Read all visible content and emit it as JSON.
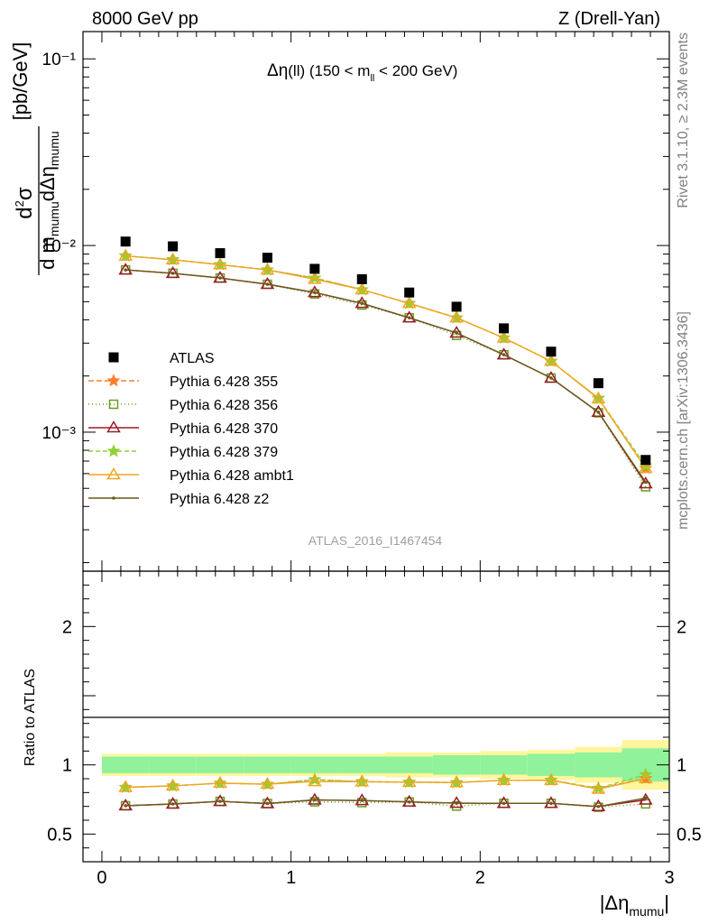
{
  "header": {
    "left": "8000 GeV pp",
    "right": "Z (Drell-Yan)"
  },
  "side_labels": {
    "rivet": "Rivet 3.1.10, ≥ 2.3M events",
    "mcplots": "mcplots.cern.ch [arXiv:1306.3436]"
  },
  "chart_data": {
    "type": "line",
    "title": "Δη(ll) (150 < m_ll < 200 GeV)",
    "analysis_tag": "ATLAS_2016_I1467454",
    "xlabel": "|Δη_mumu|",
    "ylabel": "d²σ / d m_mumu dΔη_mumu [pb/GeV]",
    "ratio_ylabel": "Ratio to ATLAS",
    "xlim": [
      -0.1,
      3.0
    ],
    "ylim": [
      0.00018,
      0.14
    ],
    "yscale": "log",
    "ratio_ylim": [
      0.3,
      2.4
    ],
    "x_ticks": [
      "0",
      "1",
      "2",
      "3"
    ],
    "y_ticks": [
      "10⁻³",
      "10⁻²",
      "10⁻¹"
    ],
    "ratio_ticks": [
      "0.5",
      "1",
      "2"
    ],
    "legend_position": "center-left",
    "x": [
      0.125,
      0.375,
      0.625,
      0.875,
      1.125,
      1.375,
      1.625,
      1.875,
      2.125,
      2.375,
      2.625,
      2.875
    ],
    "data": {
      "name": "ATLAS",
      "values": [
        0.0105,
        0.0099,
        0.0091,
        0.0086,
        0.0075,
        0.0066,
        0.0056,
        0.0047,
        0.0036,
        0.0027,
        0.00183,
        0.00071
      ]
    },
    "band_inner": [
      0.06,
      0.06,
      0.06,
      0.06,
      0.06,
      0.06,
      0.06,
      0.07,
      0.07,
      0.08,
      0.09,
      0.12
    ],
    "band_outer": [
      0.08,
      0.08,
      0.08,
      0.08,
      0.08,
      0.08,
      0.09,
      0.09,
      0.1,
      0.11,
      0.13,
      0.18
    ],
    "series": [
      {
        "name": "Pythia 6.428 355",
        "color": "#ff7f2a",
        "dash": "6,3",
        "marker": "star",
        "values": [
          0.0088,
          0.0084,
          0.0079,
          0.0074,
          0.0067,
          0.0058,
          0.0049,
          0.0041,
          0.0032,
          0.0024,
          0.00152,
          0.00064
        ]
      },
      {
        "name": "Pythia 6.428 356",
        "color": "#6b9e1f",
        "dash": "1,3",
        "marker": "square",
        "values": [
          0.0074,
          0.0071,
          0.0067,
          0.0062,
          0.0055,
          0.0048,
          0.0041,
          0.0033,
          0.0026,
          0.00195,
          0.00127,
          0.00051
        ]
      },
      {
        "name": "Pythia 6.428 370",
        "color": "#9a1c2a",
        "dash": "",
        "marker": "triangle",
        "values": [
          0.0074,
          0.0071,
          0.0067,
          0.0062,
          0.0056,
          0.0049,
          0.0041,
          0.0034,
          0.0026,
          0.00195,
          0.00128,
          0.00053
        ]
      },
      {
        "name": "Pythia 6.428 379",
        "color": "#8fd13a",
        "dash": "5,3",
        "marker": "star",
        "values": [
          0.0088,
          0.0084,
          0.0079,
          0.0074,
          0.0067,
          0.0058,
          0.0049,
          0.0041,
          0.0032,
          0.0024,
          0.00152,
          0.00066
        ]
      },
      {
        "name": "Pythia 6.428 ambt1",
        "color": "#f2a51c",
        "dash": "",
        "marker": "triangle",
        "values": [
          0.0088,
          0.0084,
          0.0079,
          0.0074,
          0.0066,
          0.0058,
          0.0049,
          0.0041,
          0.0032,
          0.0024,
          0.00151,
          0.00064
        ]
      },
      {
        "name": "Pythia 6.428 z2",
        "color": "#6b5a1a",
        "dash": "",
        "marker": "dot",
        "values": [
          0.0074,
          0.0071,
          0.0067,
          0.0062,
          0.0056,
          0.0049,
          0.0041,
          0.0034,
          0.0026,
          0.00195,
          0.00128,
          0.00054
        ]
      }
    ]
  }
}
